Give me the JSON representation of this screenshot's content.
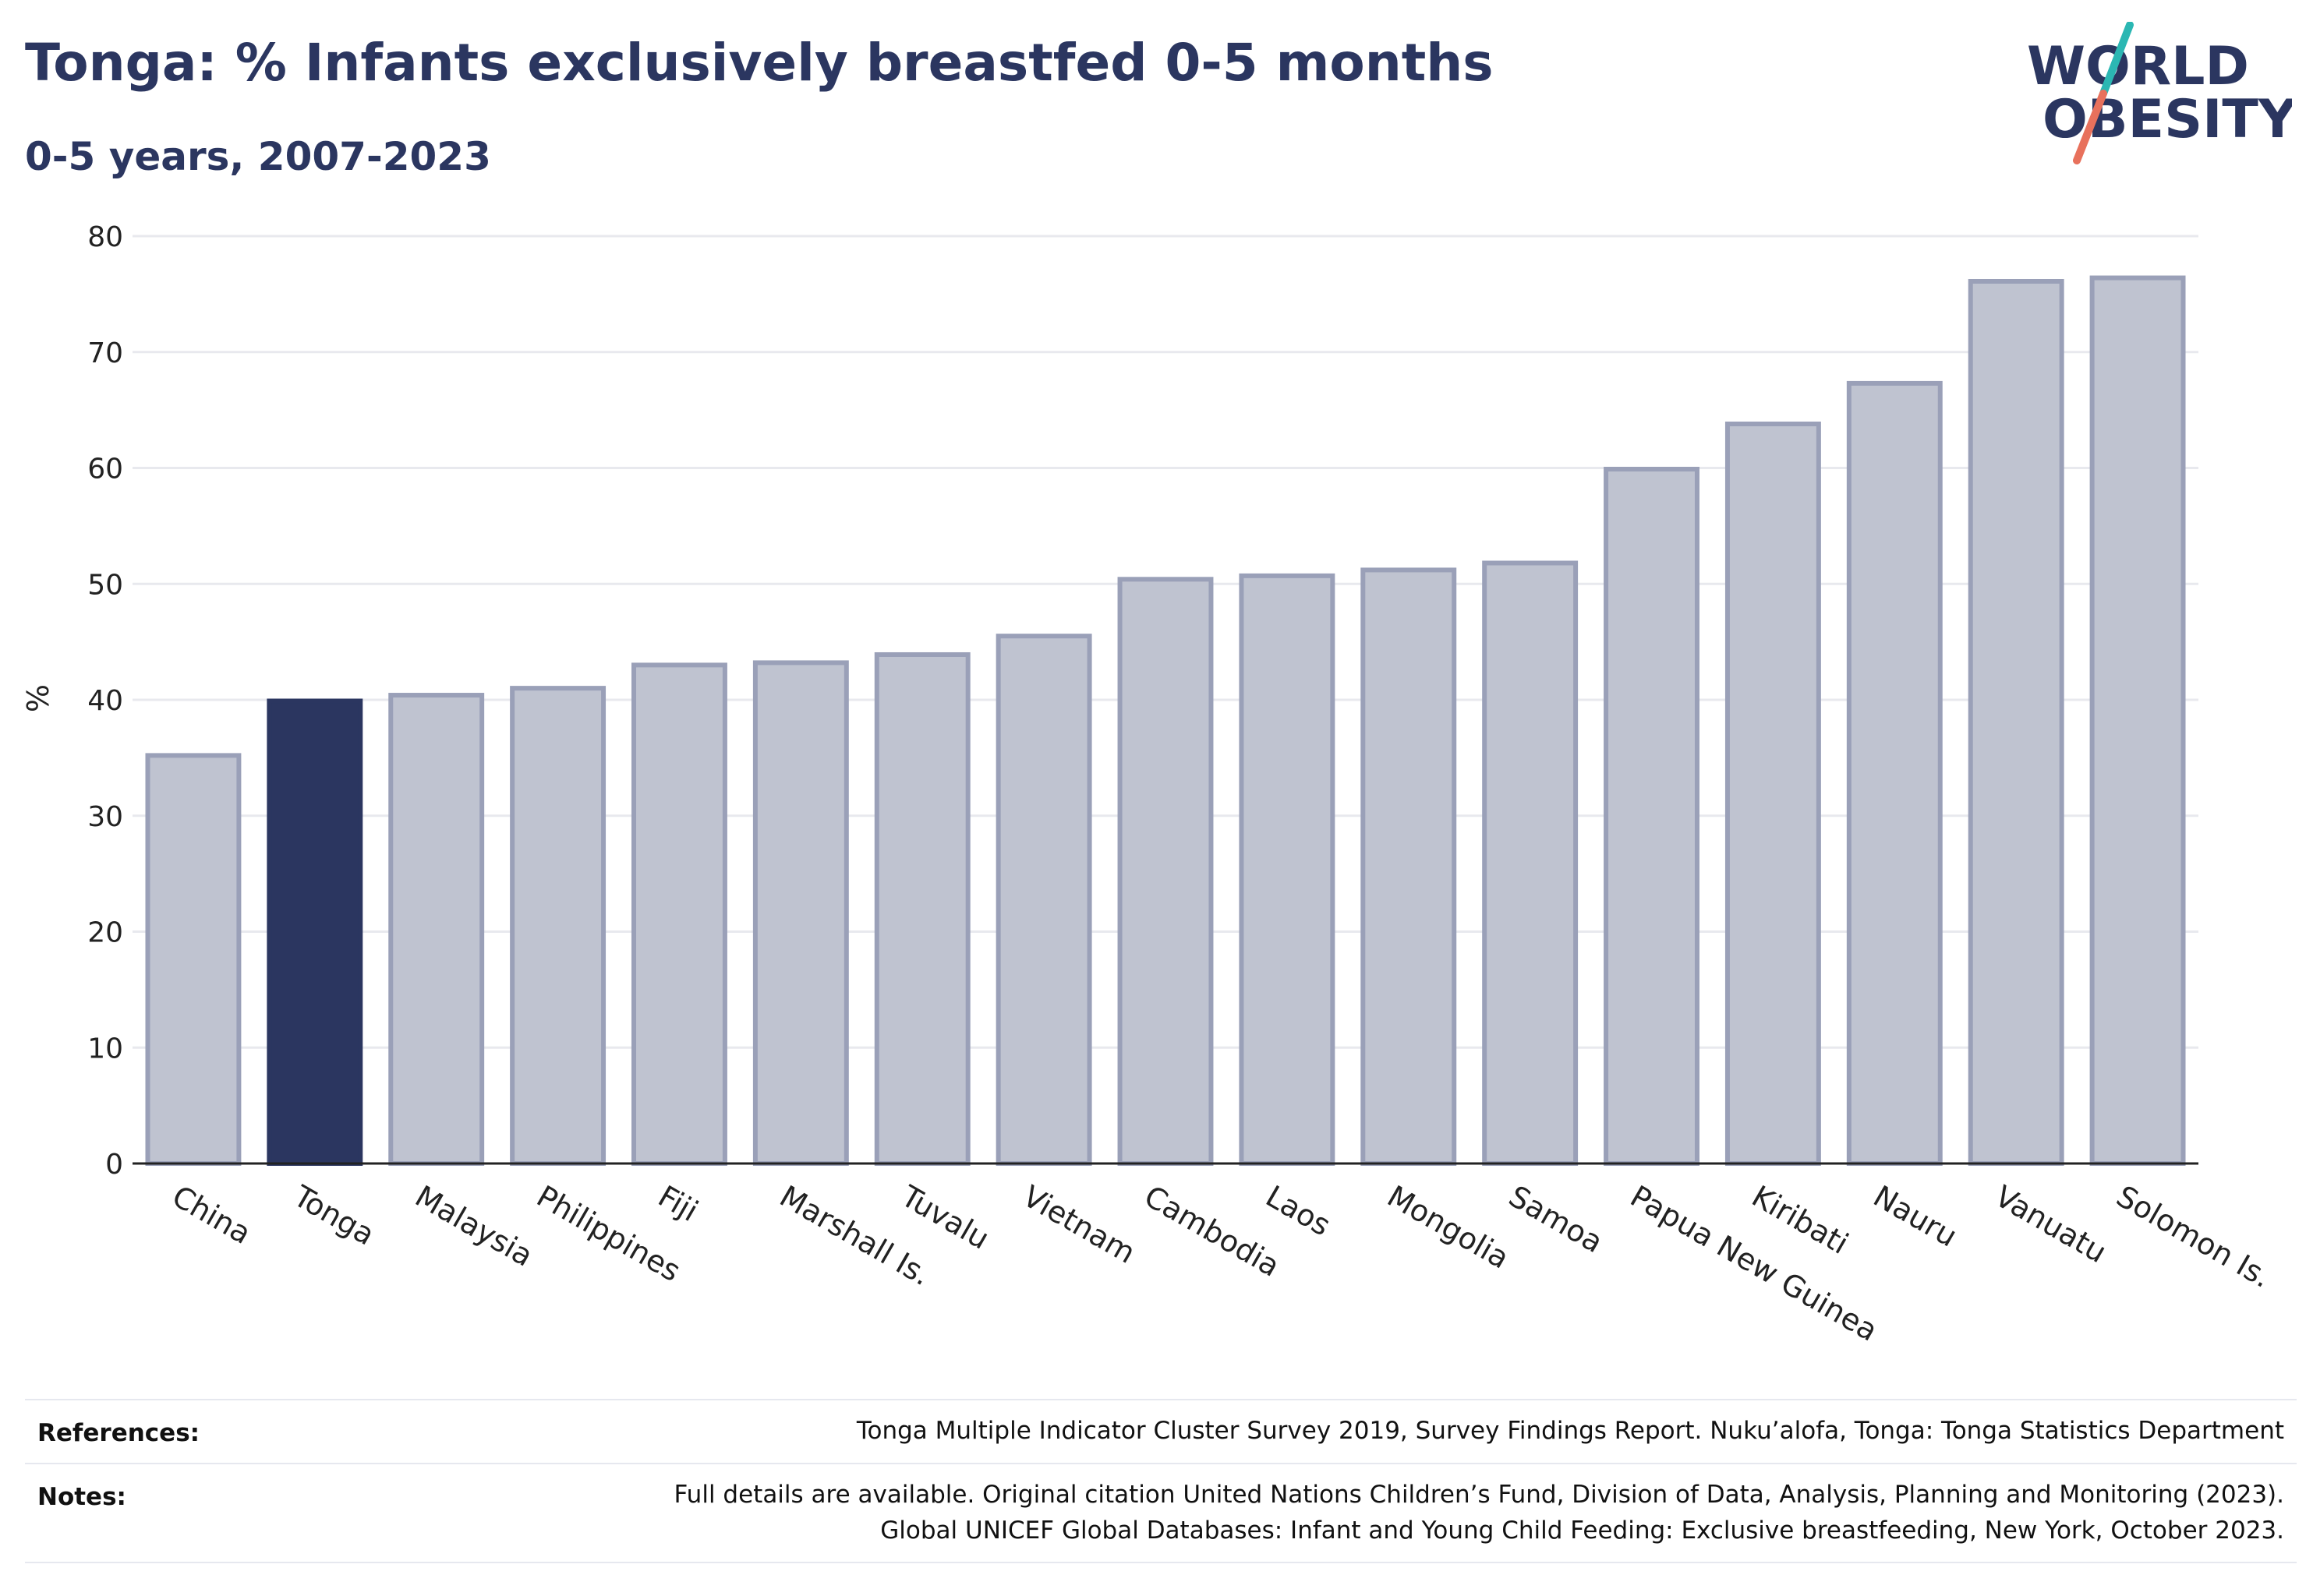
{
  "header": {
    "title": "Tonga: % Infants exclusively breastfed 0-5 months",
    "subtitle": "0-5 years, 2007-2023"
  },
  "logo": {
    "line1": "WORLD",
    "line2": "OBESITY",
    "colors": {
      "text": "#2b3660",
      "slash_teal": "#2bb7b3",
      "slash_coral": "#e8715c"
    }
  },
  "colors": {
    "highlight": "#2b3660",
    "bar_fill": "#bfc3d0",
    "bar_stroke": "#9aa0b8",
    "grid": "#e8e9ee",
    "axis": "#222222"
  },
  "chart_data": {
    "type": "bar",
    "ylabel": "%",
    "ylim": [
      0,
      80
    ],
    "yticks": [
      0,
      10,
      20,
      30,
      40,
      50,
      60,
      70,
      80
    ],
    "grid": true,
    "highlight": "Tonga",
    "categories": [
      "China",
      "Tonga",
      "Malaysia",
      "Philippines",
      "Fiji",
      "Marshall Is.",
      "Tuvalu",
      "Vietnam",
      "Cambodia",
      "Laos",
      "Mongolia",
      "Samoa",
      "Papua New Guinea",
      "Kiribati",
      "Nauru",
      "Vanuatu",
      "Solomon Is."
    ],
    "values": [
      35.2,
      39.9,
      40.4,
      41.0,
      43.0,
      43.2,
      43.9,
      45.5,
      50.4,
      50.7,
      51.2,
      51.8,
      59.9,
      63.8,
      67.3,
      76.1,
      76.4
    ]
  },
  "footer": {
    "references_label": "References:",
    "references_text": "Tonga Multiple Indicator Cluster Survey 2019, Survey Findings Report. Nuku’alofa, Tonga: Tonga Statistics Department",
    "notes_label": "Notes:",
    "notes_line1": "Full details are available. Original citation United Nations Children’s Fund, Division of Data, Analysis, Planning and Monitoring (2023).",
    "notes_line2": "Global UNICEF Global Databases: Infant and Young Child Feeding: Exclusive breastfeeding, New York, October 2023."
  }
}
